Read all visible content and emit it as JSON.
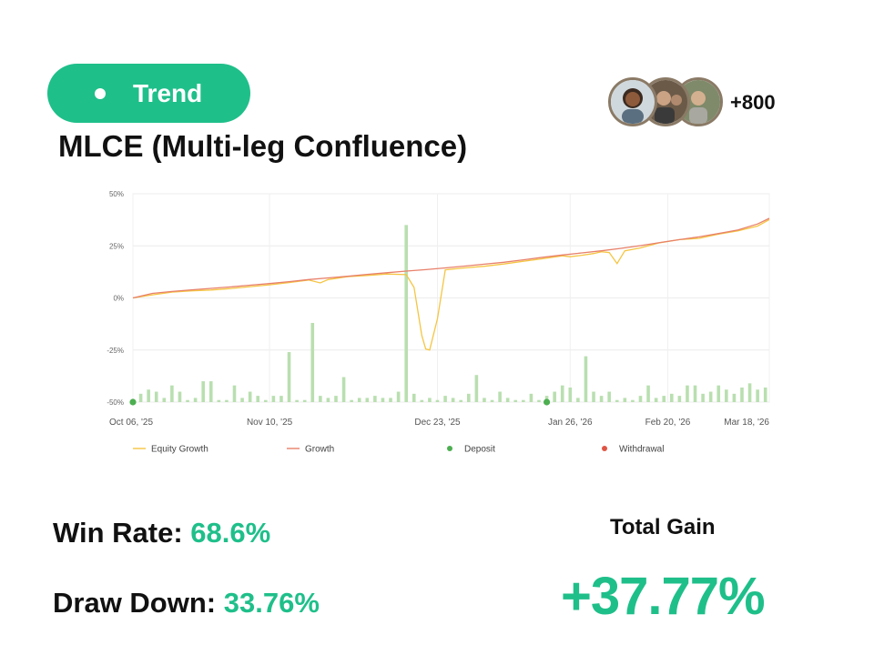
{
  "badge": {
    "label": "Trend"
  },
  "strategy": {
    "title": "MLCE (Multi-leg Confluence)"
  },
  "community": {
    "count_label": "+800"
  },
  "stats": {
    "win_rate_label": "Win Rate:",
    "win_rate_value": "68.6%",
    "drawdown_label": "Draw Down:",
    "drawdown_value": "33.76%",
    "total_gain_label": "Total Gain",
    "total_gain_value": "+37.77%"
  },
  "colors": {
    "accent": "#1fbf8a",
    "equity_line": "#f5c542",
    "growth_line": "#e8806a",
    "deposit": "#4caf50",
    "withdrawal": "#e05545",
    "volume_bar": "#b9dfb0"
  },
  "chart_data": {
    "type": "line",
    "ylim": [
      -50,
      50
    ],
    "yticks": [
      "50%",
      "25%",
      "0%",
      "-25%",
      "-50%"
    ],
    "ytick_values": [
      50,
      25,
      0,
      -25,
      -50
    ],
    "xticks": [
      "Oct 06, '25",
      "Nov 10, '25",
      "Dec 23, '25",
      "Jan 26, '26",
      "Feb 20, '26",
      "Mar 18, '26"
    ],
    "xlim": [
      0,
      163
    ],
    "xtick_positions": [
      0,
      35,
      78,
      112,
      137,
      163
    ],
    "grid": true,
    "legend_placement": "bottom",
    "legend": [
      "Equity Growth",
      "Growth",
      "Deposit",
      "Withdrawal"
    ],
    "series": [
      {
        "name": "Equity Growth",
        "x": [
          0,
          5,
          10,
          15,
          20,
          25,
          30,
          35,
          40,
          45,
          48,
          50,
          55,
          60,
          65,
          70,
          72,
          74,
          75,
          76,
          78,
          80,
          85,
          90,
          95,
          100,
          105,
          110,
          112,
          115,
          118,
          120,
          122,
          124,
          126,
          130,
          135,
          140,
          145,
          150,
          155,
          160,
          163
        ],
        "y": [
          0,
          1.5,
          2.8,
          3.4,
          3.8,
          4.5,
          5.4,
          6.3,
          7.4,
          8.6,
          7.2,
          8.8,
          10.2,
          10.8,
          11.5,
          11.2,
          5,
          -18,
          -24.5,
          -25,
          -10,
          13.5,
          14.4,
          15.2,
          16.3,
          17.6,
          18.8,
          20.2,
          19.8,
          20.5,
          21.3,
          22.2,
          21.8,
          16.5,
          22.6,
          24,
          26.5,
          28,
          28.6,
          30.6,
          32.2,
          34.5,
          37.6
        ]
      },
      {
        "name": "Growth",
        "x": [
          0,
          5,
          10,
          15,
          20,
          25,
          30,
          35,
          40,
          45,
          50,
          55,
          60,
          65,
          70,
          75,
          80,
          85,
          90,
          95,
          100,
          105,
          110,
          115,
          120,
          125,
          130,
          135,
          140,
          145,
          150,
          155,
          160,
          163
        ],
        "y": [
          0,
          2.2,
          3.1,
          3.9,
          4.6,
          5.3,
          6.1,
          6.9,
          7.8,
          8.8,
          9.6,
          10.4,
          11.3,
          12.1,
          12.9,
          13.6,
          14.4,
          15.3,
          16.2,
          17.1,
          18.3,
          19.5,
          20.6,
          21.6,
          22.6,
          23.8,
          25.1,
          26.6,
          28,
          29.3,
          30.9,
          32.6,
          35.5,
          38.2
        ]
      },
      {
        "name": "Volume",
        "x": [
          0,
          2,
          4,
          6,
          8,
          10,
          12,
          14,
          16,
          18,
          20,
          22,
          24,
          26,
          28,
          30,
          32,
          34,
          36,
          38,
          40,
          42,
          44,
          46,
          48,
          50,
          52,
          54,
          56,
          58,
          60,
          62,
          64,
          66,
          68,
          70,
          72,
          74,
          76,
          78,
          80,
          82,
          84,
          86,
          88,
          90,
          92,
          94,
          96,
          98,
          100,
          102,
          104,
          106,
          108,
          110,
          112,
          114,
          116,
          118,
          120,
          122,
          124,
          126,
          128,
          130,
          132,
          134,
          136,
          138,
          140,
          142,
          144,
          146,
          148,
          150,
          152,
          154,
          156,
          158,
          160,
          162
        ],
        "y": [
          -49,
          -46,
          -44,
          -45,
          -48,
          -42,
          -45,
          -49,
          -48,
          -40,
          -40,
          -49,
          -49,
          -42,
          -48,
          -45,
          -47,
          -49,
          -47,
          -47,
          -26,
          -49,
          -49,
          -12,
          -47,
          -48,
          -47,
          -38,
          -49,
          -48,
          -48,
          -47,
          -48,
          -48,
          -45,
          35,
          -46,
          -49,
          -48,
          -49,
          -47,
          -48,
          -49,
          -46,
          -37,
          -48,
          -49,
          -45,
          -48,
          -49,
          -49,
          -46,
          -49,
          -47,
          -45,
          -42,
          -43,
          -48,
          -28,
          -45,
          -47,
          -45,
          -49,
          -48,
          -49,
          -47,
          -42,
          -48,
          -47,
          -46,
          -47,
          -42,
          -42,
          -46,
          -45,
          -42,
          -44,
          -46,
          -43,
          -41,
          -44,
          -43
        ]
      }
    ],
    "deposits": [
      {
        "x": 0,
        "y": -50
      },
      {
        "x": 106,
        "y": -50
      }
    ],
    "withdrawals": []
  }
}
